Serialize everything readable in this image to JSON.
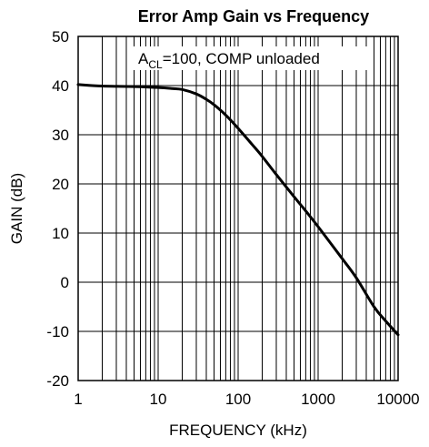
{
  "chart_data": {
    "type": "line",
    "title": "Error Amp Gain vs Frequency",
    "xlabel": "FREQUENCY (kHz)",
    "ylabel": "GAIN (dB)",
    "xscale": "log",
    "xlim": [
      1,
      10000
    ],
    "ylim": [
      -20,
      50
    ],
    "x_tick_labels": [
      "1",
      "10",
      "100",
      "1000",
      "10000"
    ],
    "y_tick_labels": [
      "50",
      "40",
      "30",
      "20",
      "10",
      "0",
      "-10",
      "-20"
    ],
    "grid": true,
    "annotation": {
      "main": "A",
      "subscript": "CL",
      "rest": "=100, COMP unloaded"
    },
    "series": [
      {
        "x": [
          1,
          2,
          5,
          10,
          15,
          20,
          30,
          40,
          50,
          70,
          100,
          150,
          200,
          300,
          500,
          700,
          1000,
          2000,
          3000,
          5000,
          7000,
          10000
        ],
        "y": [
          40.2,
          39.9,
          39.8,
          39.6,
          39.4,
          39.2,
          38.3,
          37.2,
          36.1,
          34.0,
          31.3,
          28.0,
          25.6,
          21.9,
          17.4,
          14.5,
          11.3,
          4.8,
          0.9,
          -5.0,
          -7.9,
          -10.7
        ]
      }
    ],
    "line_color": "#000000"
  }
}
